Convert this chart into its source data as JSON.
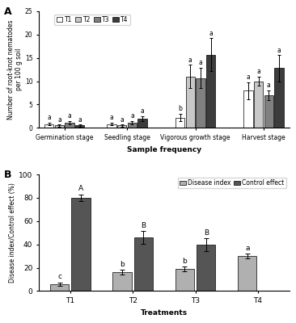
{
  "panel_a": {
    "groups": [
      "Germination stage",
      "Seedling stage",
      "Vigorous growth stage",
      "Harvest stage"
    ],
    "series": [
      "T1",
      "T2",
      "T3",
      "T4"
    ],
    "values": [
      [
        0.8,
        0.5,
        1.1,
        0.5
      ],
      [
        0.8,
        0.5,
        1.1,
        2.0
      ],
      [
        2.2,
        11.0,
        10.7,
        15.7
      ],
      [
        8.0,
        10.0,
        7.0,
        12.8
      ]
    ],
    "errors": [
      [
        0.3,
        0.2,
        0.4,
        0.2
      ],
      [
        0.3,
        0.2,
        0.4,
        0.5
      ],
      [
        0.8,
        2.5,
        2.2,
        3.5
      ],
      [
        1.8,
        1.0,
        1.0,
        2.8
      ]
    ],
    "letters": [
      [
        "a",
        "a",
        "a",
        "a"
      ],
      [
        "a",
        "a",
        "a",
        "a"
      ],
      [
        "b",
        "a",
        "a",
        "a"
      ],
      [
        "a",
        "a",
        "a",
        "a"
      ]
    ],
    "colors": [
      "#ffffff",
      "#c8c8c8",
      "#808080",
      "#3c3c3c"
    ],
    "ylabel": "Number of root-knot nematodes\nper 100 g soil",
    "xlabel": "Sample frequency",
    "ylim": [
      0,
      25
    ],
    "yticks": [
      0,
      5,
      10,
      15,
      20,
      25
    ]
  },
  "panel_b": {
    "treatments": [
      "T1",
      "T2",
      "T3",
      "T4"
    ],
    "series": [
      "Disease index",
      "Control effect"
    ],
    "values": [
      [
        6.0,
        16.5,
        19.0,
        30.0
      ],
      [
        80.0,
        46.0,
        39.5,
        null
      ]
    ],
    "errors": [
      [
        1.5,
        2.0,
        2.0,
        2.0
      ],
      [
        3.0,
        5.5,
        5.5,
        null
      ]
    ],
    "letters_di": [
      "c",
      "b",
      "b",
      "a"
    ],
    "letters_ce": [
      "A",
      "B",
      "B",
      null
    ],
    "colors": [
      "#b0b0b0",
      "#555555"
    ],
    "ylabel": "Disease index/Control effect (%)",
    "xlabel": "Treatments",
    "ylim": [
      0,
      100
    ],
    "yticks": [
      0,
      20,
      40,
      60,
      80,
      100
    ]
  }
}
